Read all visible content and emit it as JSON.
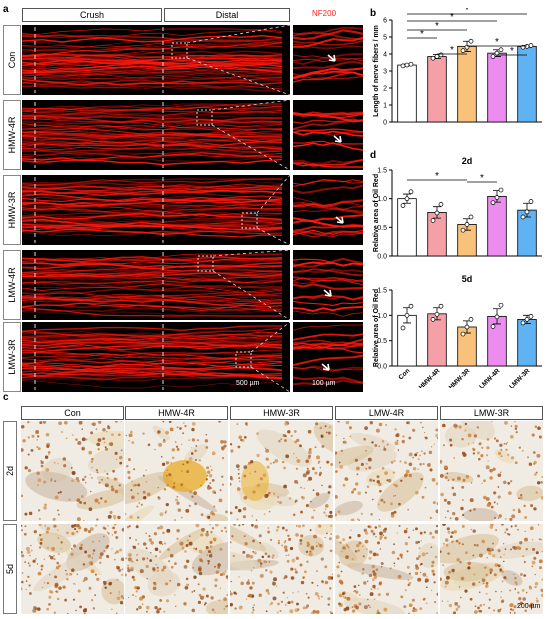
{
  "panel_a": {
    "label": "a",
    "col_headers": [
      "Crush",
      "Distal"
    ],
    "inset_header": "NF200",
    "rows": [
      "Con",
      "HMW-4R",
      "HMW-3R",
      "LMW-4R",
      "LMW-3R"
    ],
    "scale_main": "500 µm",
    "scale_inset": "100 µm"
  },
  "panel_b": {
    "label": "b",
    "ylabel": "Length of nerve fibers / mm"
  },
  "panel_d": {
    "label": "d",
    "title_top": "2d",
    "title_bottom": "5d",
    "ylabel": "Relative area of Oil Red"
  },
  "panel_c": {
    "label": "c",
    "col_headers": [
      "Con",
      "HMW-4R",
      "HMW-3R",
      "LMW-4R",
      "LMW-3R"
    ],
    "rows": [
      "2d",
      "5d"
    ],
    "scale": "200 µm"
  },
  "colors": {
    "Con": "#ffffff",
    "HMW-4R": "#f4a0a6",
    "HMW-3R": "#f8c27a",
    "LMW-4R": "#ec8cf0",
    "LMW-3R": "#5fb3f2",
    "nerve": "#ff1a10",
    "stain": "#b7652a"
  },
  "chart_data": [
    {
      "type": "bar",
      "categories": [
        "Con",
        "HMW-4R",
        "HMW-3R",
        "LMW-4R",
        "LMW-3R"
      ],
      "values": [
        3.35,
        3.85,
        4.45,
        4.05,
        4.45
      ],
      "errors": [
        0.05,
        0.12,
        0.3,
        0.2,
        0.05
      ],
      "points": [
        [
          3.3,
          3.35,
          3.4
        ],
        [
          3.75,
          3.85,
          3.95
        ],
        [
          4.2,
          4.4,
          4.75
        ],
        [
          3.85,
          4.05,
          4.25
        ],
        [
          4.4,
          4.45,
          4.5
        ]
      ],
      "ylim": [
        0,
        6
      ],
      "yticks": [
        0,
        1,
        2,
        3,
        4,
        5,
        6
      ],
      "ylabel": "Length of nerve fibers / mm",
      "significance": [
        [
          "Con",
          "HMW-3R"
        ],
        [
          "Con",
          "LMW-4R"
        ],
        [
          "Con",
          "LMW-3R"
        ],
        [
          "Con",
          "HMW-4R"
        ],
        [
          "HMW-4R",
          "HMW-3R"
        ],
        [
          "HMW-3R",
          "LMW-3R"
        ],
        [
          "LMW-4R",
          "LMW-3R"
        ]
      ],
      "sig_label": "*"
    },
    {
      "type": "bar",
      "title": "2d",
      "categories": [
        "Con",
        "HMW-4R",
        "HMW-3R",
        "LMW-4R",
        "LMW-3R"
      ],
      "values": [
        1.0,
        0.76,
        0.55,
        1.04,
        0.8
      ],
      "errors": [
        0.08,
        0.1,
        0.1,
        0.1,
        0.12
      ],
      "points": [
        [
          0.88,
          1.0,
          1.12
        ],
        [
          0.62,
          0.75,
          0.9
        ],
        [
          0.45,
          0.55,
          0.68
        ],
        [
          0.93,
          1.02,
          1.15
        ],
        [
          0.68,
          0.77,
          0.95
        ]
      ],
      "ylim": [
        0,
        1.5
      ],
      "yticks": [
        0.0,
        0.5,
        1.0,
        1.5
      ],
      "ylabel": "Relative area of Oil Red",
      "significance": [
        [
          "Con",
          "HMW-3R"
        ],
        [
          "HMW-3R",
          "LMW-4R"
        ]
      ],
      "sig_label": "*"
    },
    {
      "type": "bar",
      "title": "5d",
      "categories": [
        "Con",
        "HMW-4R",
        "HMW-3R",
        "LMW-4R",
        "LMW-3R"
      ],
      "values": [
        1.0,
        1.03,
        0.77,
        0.98,
        0.92
      ],
      "errors": [
        0.15,
        0.12,
        0.12,
        0.15,
        0.08
      ],
      "points": [
        [
          0.75,
          1.0,
          1.18
        ],
        [
          0.92,
          1.02,
          1.18
        ],
        [
          0.63,
          0.77,
          0.92
        ],
        [
          0.78,
          0.97,
          1.2
        ],
        [
          0.85,
          0.92,
          0.98
        ]
      ],
      "ylim": [
        0,
        1.5
      ],
      "yticks": [
        0.0,
        0.5,
        1.0,
        1.5
      ],
      "ylabel": "Relative area of Oil Red",
      "significance": [],
      "sig_label": "*"
    }
  ]
}
